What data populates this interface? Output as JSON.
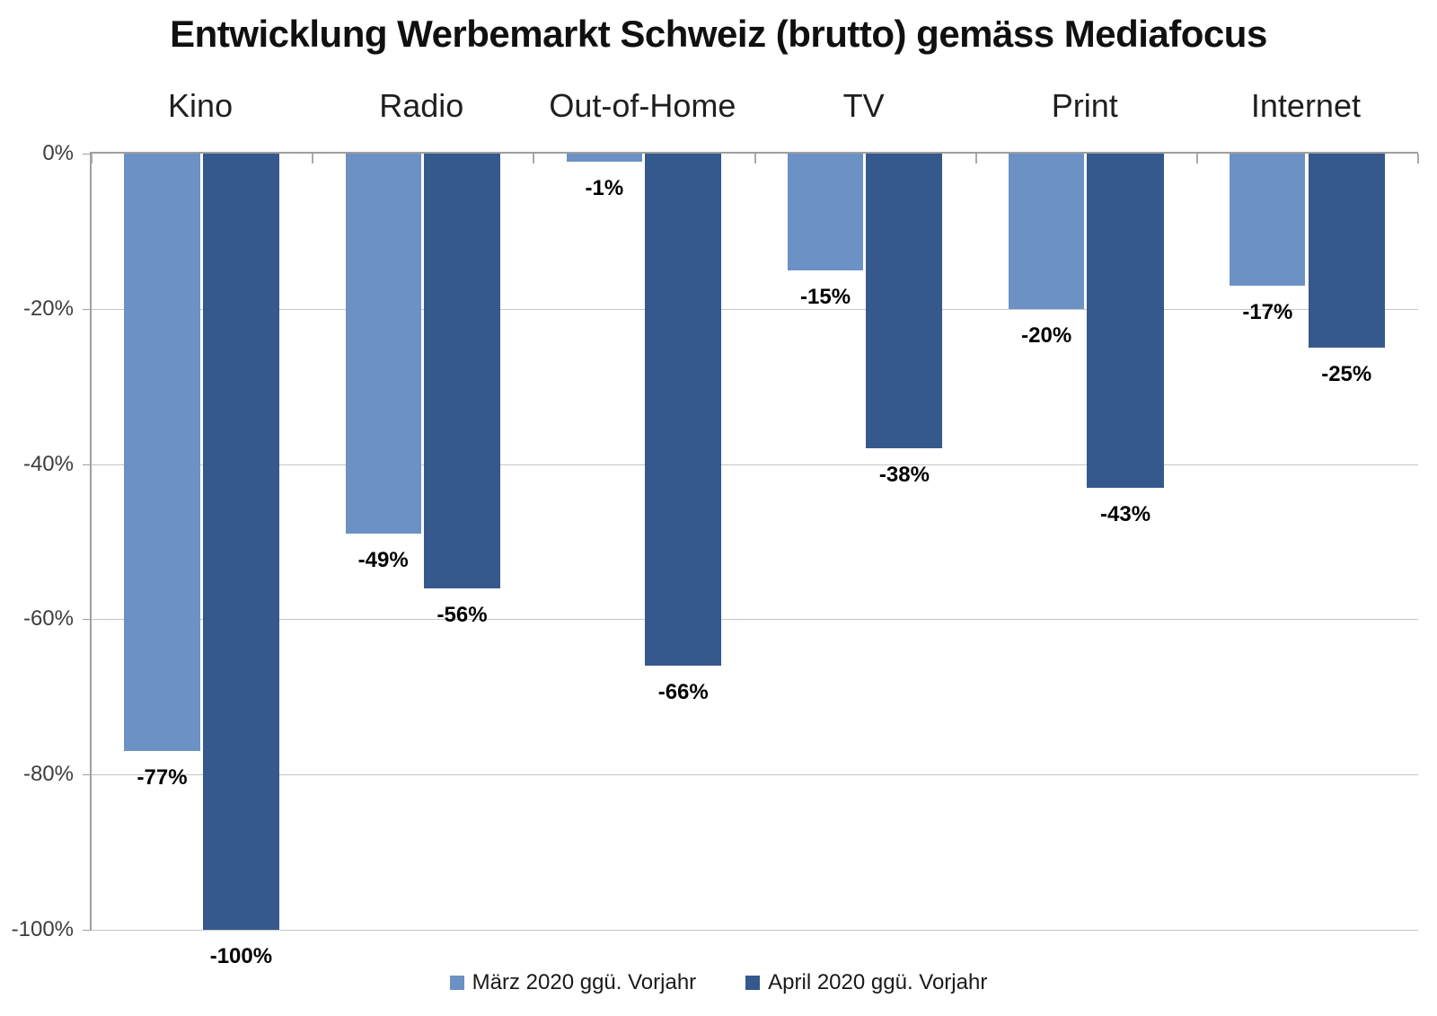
{
  "chart_data": {
    "type": "bar",
    "title": "Entwicklung Werbemarkt Schweiz (brutto) gemäss Mediafocus",
    "categories": [
      "Kino",
      "Radio",
      "Out-of-Home",
      "TV",
      "Print",
      "Internet"
    ],
    "series": [
      {
        "name": "März 2020 ggü. Vorjahr",
        "color": "#6b91c5",
        "values": [
          -77,
          -49,
          -1,
          -15,
          -20,
          -17
        ],
        "labels": [
          "-77%",
          "-49%",
          "-1%",
          "-15%",
          "-20%",
          "-17%"
        ]
      },
      {
        "name": "April 2020 ggü. Vorjahr",
        "color": "#35598c",
        "values": [
          -100,
          -56,
          -66,
          -38,
          -43,
          -25
        ],
        "labels": [
          "-100%",
          "-56%",
          "-66%",
          "-38%",
          "-43%",
          "-25%"
        ]
      }
    ],
    "y_axis": {
      "min": -100,
      "max": 0,
      "tick_step": 20,
      "ticks": [
        {
          "value": 0,
          "label": "0%"
        },
        {
          "value": -20,
          "label": "-20%"
        },
        {
          "value": -40,
          "label": "-40%"
        },
        {
          "value": -60,
          "label": "-60%"
        },
        {
          "value": -80,
          "label": "-80%"
        },
        {
          "value": -100,
          "label": "-100%"
        }
      ]
    },
    "grid": true,
    "legend_position": "bottom",
    "colors": {
      "series_maerz": "#6b91c5",
      "series_april": "#35598c",
      "gridline": "#c6c6c6",
      "axis": "#9f9f9f"
    }
  }
}
